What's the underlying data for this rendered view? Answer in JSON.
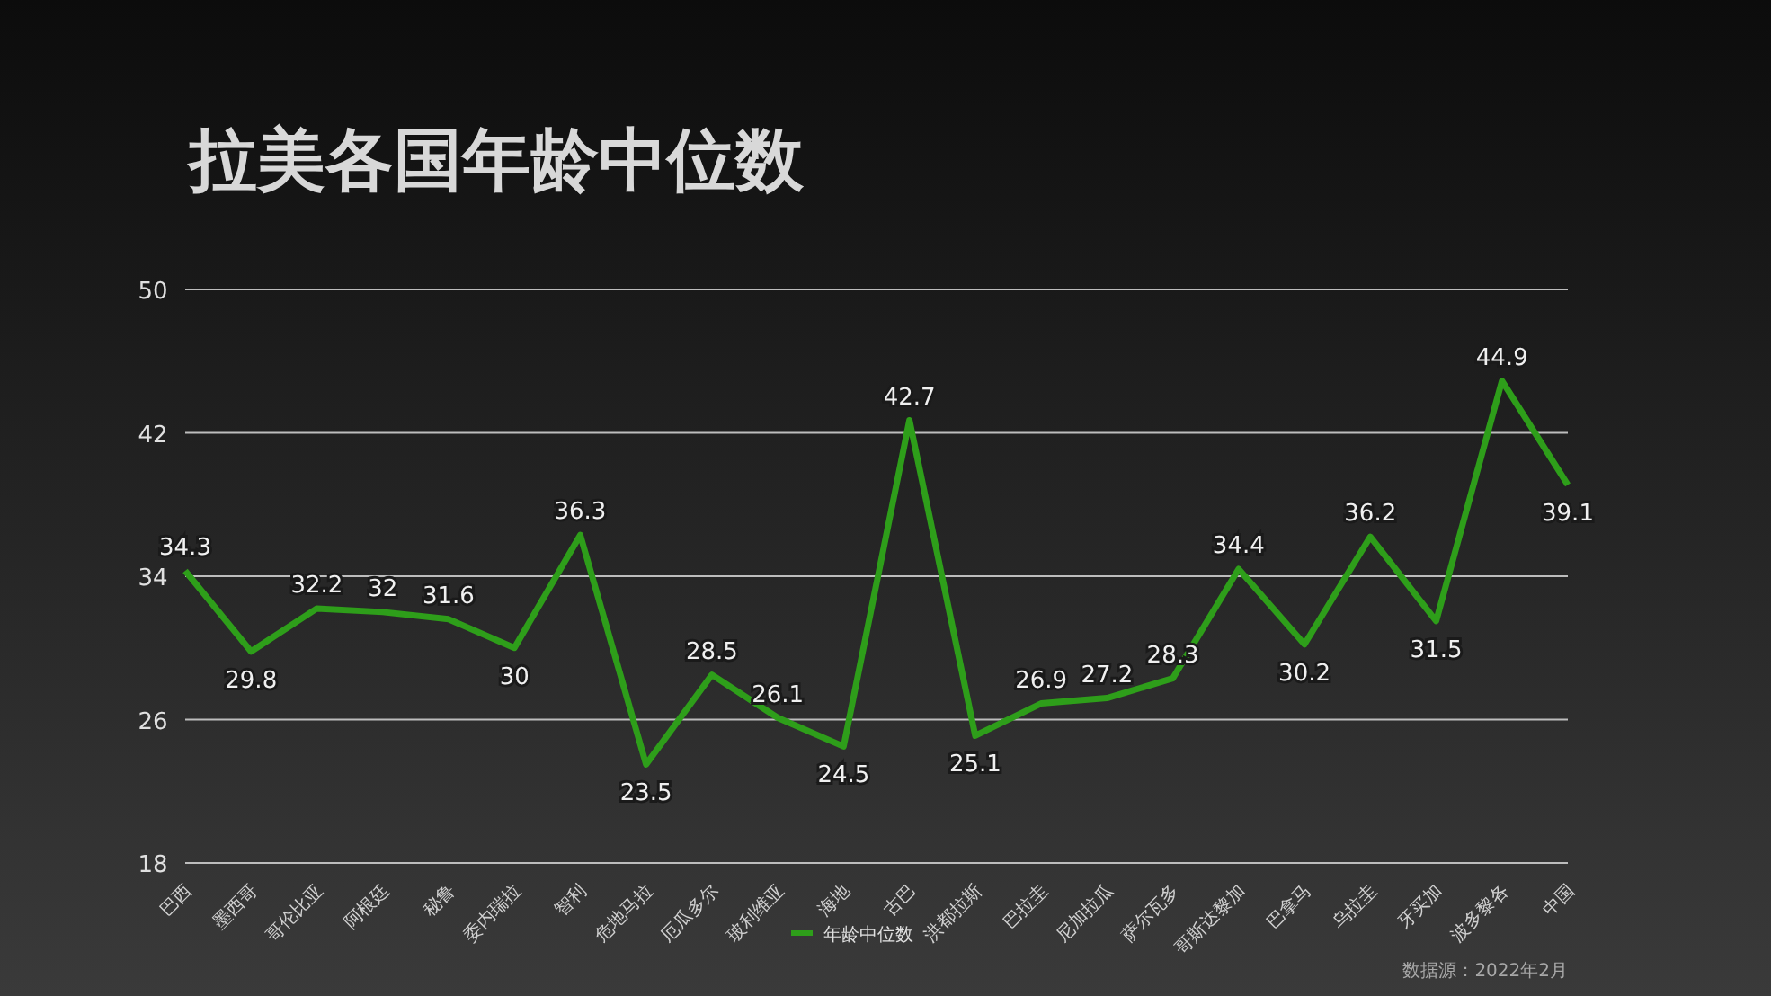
{
  "chart_data": {
    "type": "line",
    "title": "拉美各国年龄中位数",
    "categories": [
      "巴西",
      "墨西哥",
      "哥伦比亚",
      "阿根廷",
      "秘鲁",
      "委内瑞拉",
      "智利",
      "危地马拉",
      "厄瓜多尔",
      "玻利维亚",
      "海地",
      "古巴",
      "洪都拉斯",
      "巴拉圭",
      "尼加拉瓜",
      "萨尔瓦多",
      "哥斯达黎加",
      "巴拿马",
      "乌拉圭",
      "牙买加",
      "波多黎各",
      "中国"
    ],
    "series": [
      {
        "name": "年龄中位数",
        "color": "#2e9e1a",
        "values": [
          34.3,
          29.8,
          32.2,
          32,
          31.6,
          30,
          36.3,
          23.5,
          28.5,
          26.1,
          24.5,
          42.7,
          25.1,
          26.9,
          27.2,
          28.3,
          34.4,
          30.2,
          36.2,
          31.5,
          44.9,
          39.1
        ]
      }
    ],
    "ylim": [
      18,
      50
    ],
    "yticks": [
      18,
      26,
      34,
      42,
      50
    ],
    "grid": "y",
    "legend": "bottom",
    "data_labels": true,
    "marker": "none",
    "line_style": "solid",
    "annotations": [
      "数据源：2022年2月"
    ]
  }
}
